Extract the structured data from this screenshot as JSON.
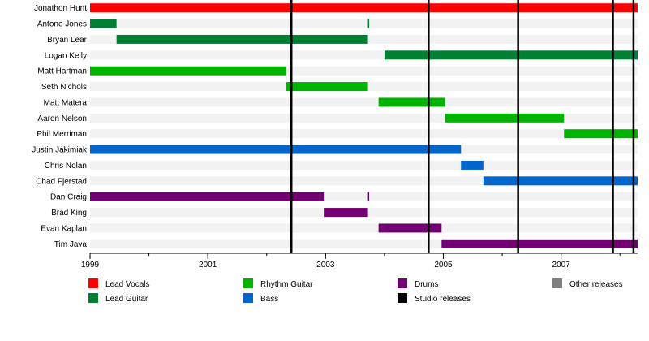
{
  "chart_data": {
    "type": "timeline",
    "members": [
      "Jonathon Hunt",
      "Antone Jones",
      "Bryan Lear",
      "Logan Kelly",
      "Matt Hartman",
      "Seth Nichols",
      "Matt Matera",
      "Aaron Nelson",
      "Phil Merriman",
      "Justin Jakimiak",
      "Chris Nolan",
      "Chad Fjerstad",
      "Dan Craig",
      "Brad King",
      "Evan Kaplan",
      "Tim Java"
    ],
    "bars": [
      {
        "member": "Jonathon Hunt",
        "role": "Lead Vocals",
        "start": 1999.0,
        "end": 2008.3
      },
      {
        "member": "Antone Jones",
        "role": "Lead Guitar",
        "start": 1999.0,
        "end": 1999.45
      },
      {
        "member": "Antone Jones",
        "role": "Lead Guitar",
        "start": 2003.72,
        "end": 2003.74
      },
      {
        "member": "Bryan Lear",
        "role": "Lead Guitar",
        "start": 1999.45,
        "end": 2003.72
      },
      {
        "member": "Logan Kelly",
        "role": "Lead Guitar",
        "start": 2004.0,
        "end": 2008.3
      },
      {
        "member": "Matt Hartman",
        "role": "Rhythm Guitar",
        "start": 1999.0,
        "end": 2002.33
      },
      {
        "member": "Seth Nichols",
        "role": "Rhythm Guitar",
        "start": 2002.33,
        "end": 2003.72
      },
      {
        "member": "Matt Matera",
        "role": "Rhythm Guitar",
        "start": 2003.9,
        "end": 2005.03
      },
      {
        "member": "Aaron Nelson",
        "role": "Rhythm Guitar",
        "start": 2005.03,
        "end": 2007.05
      },
      {
        "member": "Phil Merriman",
        "role": "Rhythm Guitar",
        "start": 2007.05,
        "end": 2008.3
      },
      {
        "member": "Justin Jakimiak",
        "role": "Bass",
        "start": 1999.0,
        "end": 2005.3
      },
      {
        "member": "Chris Nolan",
        "role": "Bass",
        "start": 2005.3,
        "end": 2005.68
      },
      {
        "member": "Chad Fjerstad",
        "role": "Bass",
        "start": 2005.68,
        "end": 2008.3
      },
      {
        "member": "Dan Craig",
        "role": "Drums",
        "start": 1999.0,
        "end": 2002.97
      },
      {
        "member": "Dan Craig",
        "role": "Drums",
        "start": 2003.72,
        "end": 2003.74
      },
      {
        "member": "Brad King",
        "role": "Drums",
        "start": 2002.97,
        "end": 2003.72
      },
      {
        "member": "Evan Kaplan",
        "role": "Drums",
        "start": 2003.9,
        "end": 2004.97
      },
      {
        "member": "Tim Java",
        "role": "Drums",
        "start": 2004.97,
        "end": 2008.3
      }
    ],
    "studio_releases": [
      2002.42,
      2004.75,
      2006.27,
      2007.88,
      2008.23
    ],
    "x_ticks": [
      "1999",
      "2001",
      "2003",
      "2005",
      "2007"
    ],
    "x_tick_values": [
      1999,
      2001,
      2003,
      2005,
      2007
    ],
    "x_range": [
      1999.0,
      2008.3
    ],
    "legend": [
      {
        "label": "Lead Vocals",
        "color": "#ff0000"
      },
      {
        "label": "Lead Guitar",
        "color": "#008033"
      },
      {
        "label": "Rhythm Guitar",
        "color": "#00b300"
      },
      {
        "label": "Bass",
        "color": "#0066cc"
      },
      {
        "label": "Drums",
        "color": "#730073"
      },
      {
        "label": "Studio releases",
        "color": "#000000"
      },
      {
        "label": "Other releases",
        "color": "#808080"
      }
    ],
    "role_colors": {
      "Lead Vocals": "#ff0000",
      "Lead Guitar": "#008033",
      "Rhythm Guitar": "#00b300",
      "Bass": "#0066cc",
      "Drums": "#730073"
    },
    "stripe_color": "#f2f2f2",
    "grid": false
  }
}
